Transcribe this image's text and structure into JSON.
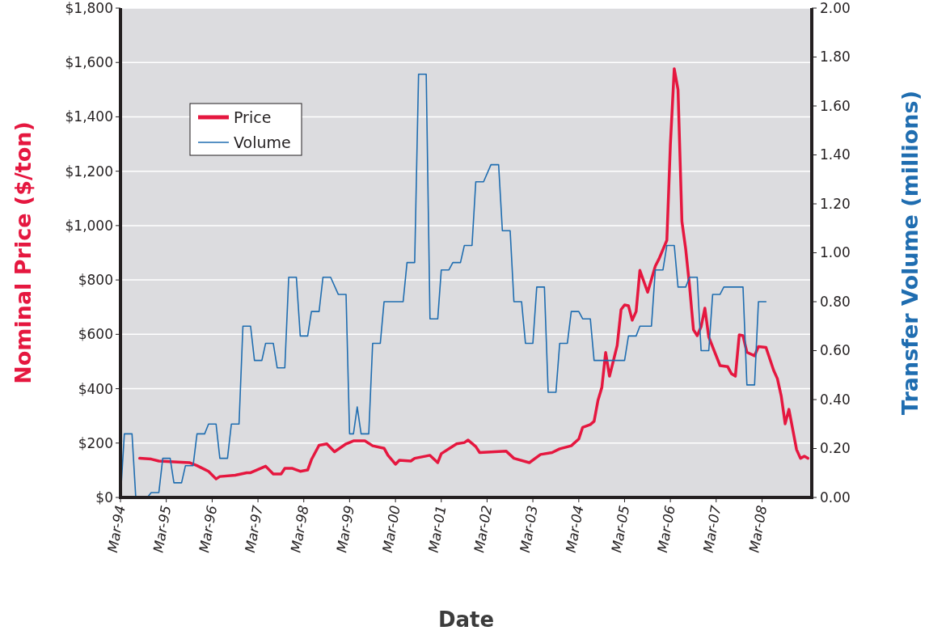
{
  "chart_data": {
    "type": "line",
    "xlabel": "Date",
    "ylabel": "Nominal Price ($/ton)",
    "y2label": "Transfer Volume (millions)",
    "xlim": [
      "1994-03",
      "2009-04"
    ],
    "xticks": [
      {
        "value": "1994-03",
        "label": "Mar-94"
      },
      {
        "value": "1995-03",
        "label": "Mar-95"
      },
      {
        "value": "1996-03",
        "label": "Mar-96"
      },
      {
        "value": "1997-03",
        "label": "Mar-97"
      },
      {
        "value": "1998-03",
        "label": "Mar-98"
      },
      {
        "value": "1999-03",
        "label": "Mar-99"
      },
      {
        "value": "2000-03",
        "label": "Mar-00"
      },
      {
        "value": "2001-03",
        "label": "Mar-01"
      },
      {
        "value": "2002-03",
        "label": "Mar-02"
      },
      {
        "value": "2003-03",
        "label": "Mar-03"
      },
      {
        "value": "2004-03",
        "label": "Mar-04"
      },
      {
        "value": "2005-03",
        "label": "Mar-05"
      },
      {
        "value": "2006-03",
        "label": "Mar-06"
      },
      {
        "value": "2007-03",
        "label": "Mar-07"
      },
      {
        "value": "2008-03",
        "label": "Mar-08"
      }
    ],
    "ylim": [
      0,
      1800
    ],
    "yticks": [
      {
        "value": 0,
        "label": "$0"
      },
      {
        "value": 200,
        "label": "$200"
      },
      {
        "value": 400,
        "label": "$400"
      },
      {
        "value": 600,
        "label": "$600"
      },
      {
        "value": 800,
        "label": "$800"
      },
      {
        "value": 1000,
        "label": "$1,000"
      },
      {
        "value": 1200,
        "label": "$1,200"
      },
      {
        "value": 1400,
        "label": "$1,400"
      },
      {
        "value": 1600,
        "label": "$1,600"
      },
      {
        "value": 1800,
        "label": "$1,800"
      }
    ],
    "y2lim": [
      0,
      2
    ],
    "y2ticks": [
      {
        "value": 0,
        "label": "0.00"
      },
      {
        "value": 0.2,
        "label": "0.20"
      },
      {
        "value": 0.4,
        "label": "0.40"
      },
      {
        "value": 0.6,
        "label": "0.60"
      },
      {
        "value": 0.8,
        "label": "0.80"
      },
      {
        "value": 1,
        "label": "1.00"
      },
      {
        "value": 1.2,
        "label": "1.20"
      },
      {
        "value": 1.4,
        "label": "1.40"
      },
      {
        "value": 1.6,
        "label": "1.60"
      },
      {
        "value": 1.8,
        "label": "1.80"
      },
      {
        "value": 2,
        "label": "2.00"
      }
    ],
    "grid": "y",
    "legend": "top left",
    "series": [
      {
        "name": "Price",
        "color": "#e5173f",
        "x": [
          "1994-08",
          "1994-11",
          "1995-01",
          "1995-05",
          "1995-09",
          "1995-11",
          "1996-02",
          "1996-04",
          "1996-05",
          "1996-09",
          "1996-12",
          "1997-01",
          "1997-05",
          "1997-07",
          "1997-09",
          "1997-10",
          "1997-12",
          "1998-02",
          "1998-04",
          "1998-05",
          "1998-07",
          "1998-09",
          "1998-11",
          "1999-02",
          "1999-04",
          "1999-07",
          "1999-09",
          "1999-12",
          "2000-01",
          "2000-03",
          "2000-04",
          "2000-07",
          "2000-08",
          "2000-12",
          "2001-02",
          "2001-03",
          "2001-05",
          "2001-07",
          "2001-09",
          "2001-10",
          "2001-12",
          "2002-01",
          "2002-05",
          "2002-08",
          "2002-10",
          "2003-02",
          "2003-05",
          "2003-08",
          "2003-10",
          "2004-01",
          "2004-03",
          "2004-04",
          "2004-06",
          "2004-07",
          "2004-08",
          "2004-09",
          "2004-10",
          "2004-11",
          "2005-01",
          "2005-02",
          "2005-03",
          "2005-04",
          "2005-05",
          "2005-06",
          "2005-07",
          "2005-09",
          "2005-11",
          "2005-12",
          "2006-02",
          "2006-03",
          "2006-04",
          "2006-05",
          "2006-06",
          "2006-07",
          "2006-08",
          "2006-09",
          "2006-10",
          "2006-11",
          "2006-12",
          "2007-01",
          "2007-04",
          "2007-06",
          "2007-07",
          "2007-08",
          "2007-09",
          "2007-10",
          "2007-11",
          "2008-01",
          "2008-02",
          "2008-04",
          "2008-06",
          "2008-07",
          "2008-08",
          "2008-09",
          "2008-10",
          "2008-12",
          "2009-01",
          "2009-02",
          "2009-03"
        ],
        "values": [
          144,
          141,
          134,
          131,
          128,
          117,
          96,
          68,
          77,
          82,
          91,
          91,
          115,
          86,
          86,
          107,
          107,
          96,
          101,
          139,
          192,
          197,
          168,
          197,
          208,
          208,
          190,
          181,
          155,
          122,
          137,
          134,
          144,
          155,
          128,
          161,
          179,
          197,
          202,
          211,
          187,
          165,
          168,
          170,
          144,
          128,
          158,
          165,
          179,
          190,
          215,
          258,
          268,
          280,
          357,
          405,
          533,
          446,
          559,
          691,
          708,
          705,
          652,
          684,
          835,
          755,
          851,
          878,
          946,
          1297,
          1577,
          1500,
          1015,
          914,
          777,
          617,
          595,
          628,
          696,
          590,
          485,
          481,
          455,
          446,
          598,
          595,
          534,
          521,
          555,
          552,
          468,
          437,
          372,
          271,
          324,
          176,
          144,
          152,
          144
        ]
      },
      {
        "name": "Volume",
        "color": "#1f6db0",
        "axis": "y2",
        "x": [
          "1994-03",
          "1994-04",
          "1994-06",
          "1994-07",
          "1994-10",
          "1994-11",
          "1995-01",
          "1995-02",
          "1995-04",
          "1995-05",
          "1995-07",
          "1995-08",
          "1995-10",
          "1995-11",
          "1996-01",
          "1996-02",
          "1996-04",
          "1996-05",
          "1996-07",
          "1996-08",
          "1996-10",
          "1996-11",
          "1997-01",
          "1997-02",
          "1997-04",
          "1997-05",
          "1997-07",
          "1997-08",
          "1997-10",
          "1997-11",
          "1998-01",
          "1998-02",
          "1998-04",
          "1998-05",
          "1998-07",
          "1998-08",
          "1998-10",
          "1998-12",
          "1999-02",
          "1999-03",
          "1999-04",
          "1999-05",
          "1999-06",
          "1999-08",
          "1999-09",
          "1999-11",
          "1999-12",
          "2000-05",
          "2000-06",
          "2000-08",
          "2000-09",
          "2000-11",
          "2000-12",
          "2001-02",
          "2001-03",
          "2001-05",
          "2001-06",
          "2001-08",
          "2001-09",
          "2001-11",
          "2001-12",
          "2002-02",
          "2002-04",
          "2002-06",
          "2002-07",
          "2002-09",
          "2002-10",
          "2002-12",
          "2003-01",
          "2003-03",
          "2003-04",
          "2003-06",
          "2003-07",
          "2003-09",
          "2003-10",
          "2003-12",
          "2004-01",
          "2004-03",
          "2004-04",
          "2004-06",
          "2004-07",
          "2005-03",
          "2005-04",
          "2005-06",
          "2005-07",
          "2005-10",
          "2005-11",
          "2006-01",
          "2006-02",
          "2006-04",
          "2006-05",
          "2006-07",
          "2006-08",
          "2006-10",
          "2006-11",
          "2007-01",
          "2007-02",
          "2007-04",
          "2007-05",
          "2007-10",
          "2007-11",
          "2008-01",
          "2008-02",
          "2008-04"
        ],
        "values": [
          0,
          0.26,
          0.26,
          0,
          0,
          0.02,
          0.02,
          0.16,
          0.16,
          0.06,
          0.06,
          0.13,
          0.13,
          0.26,
          0.26,
          0.3,
          0.3,
          0.16,
          0.16,
          0.3,
          0.3,
          0.7,
          0.7,
          0.56,
          0.56,
          0.63,
          0.63,
          0.53,
          0.53,
          0.9,
          0.9,
          0.66,
          0.66,
          0.76,
          0.76,
          0.9,
          0.9,
          0.83,
          0.83,
          0.26,
          0.26,
          0.37,
          0.26,
          0.26,
          0.63,
          0.63,
          0.8,
          0.8,
          0.96,
          0.96,
          1.73,
          1.73,
          0.73,
          0.73,
          0.93,
          0.93,
          0.96,
          0.96,
          1.03,
          1.03,
          1.29,
          1.29,
          1.36,
          1.36,
          1.09,
          1.09,
          0.8,
          0.8,
          0.63,
          0.63,
          0.86,
          0.86,
          0.43,
          0.43,
          0.63,
          0.63,
          0.76,
          0.76,
          0.73,
          0.73,
          0.56,
          0.56,
          0.66,
          0.66,
          0.7,
          0.7,
          0.93,
          0.93,
          1.03,
          1.03,
          0.86,
          0.86,
          0.9,
          0.9,
          0.6,
          0.6,
          0.83,
          0.83,
          0.86,
          0.86,
          0.46,
          0.46,
          0.8,
          0.8
        ]
      }
    ]
  }
}
